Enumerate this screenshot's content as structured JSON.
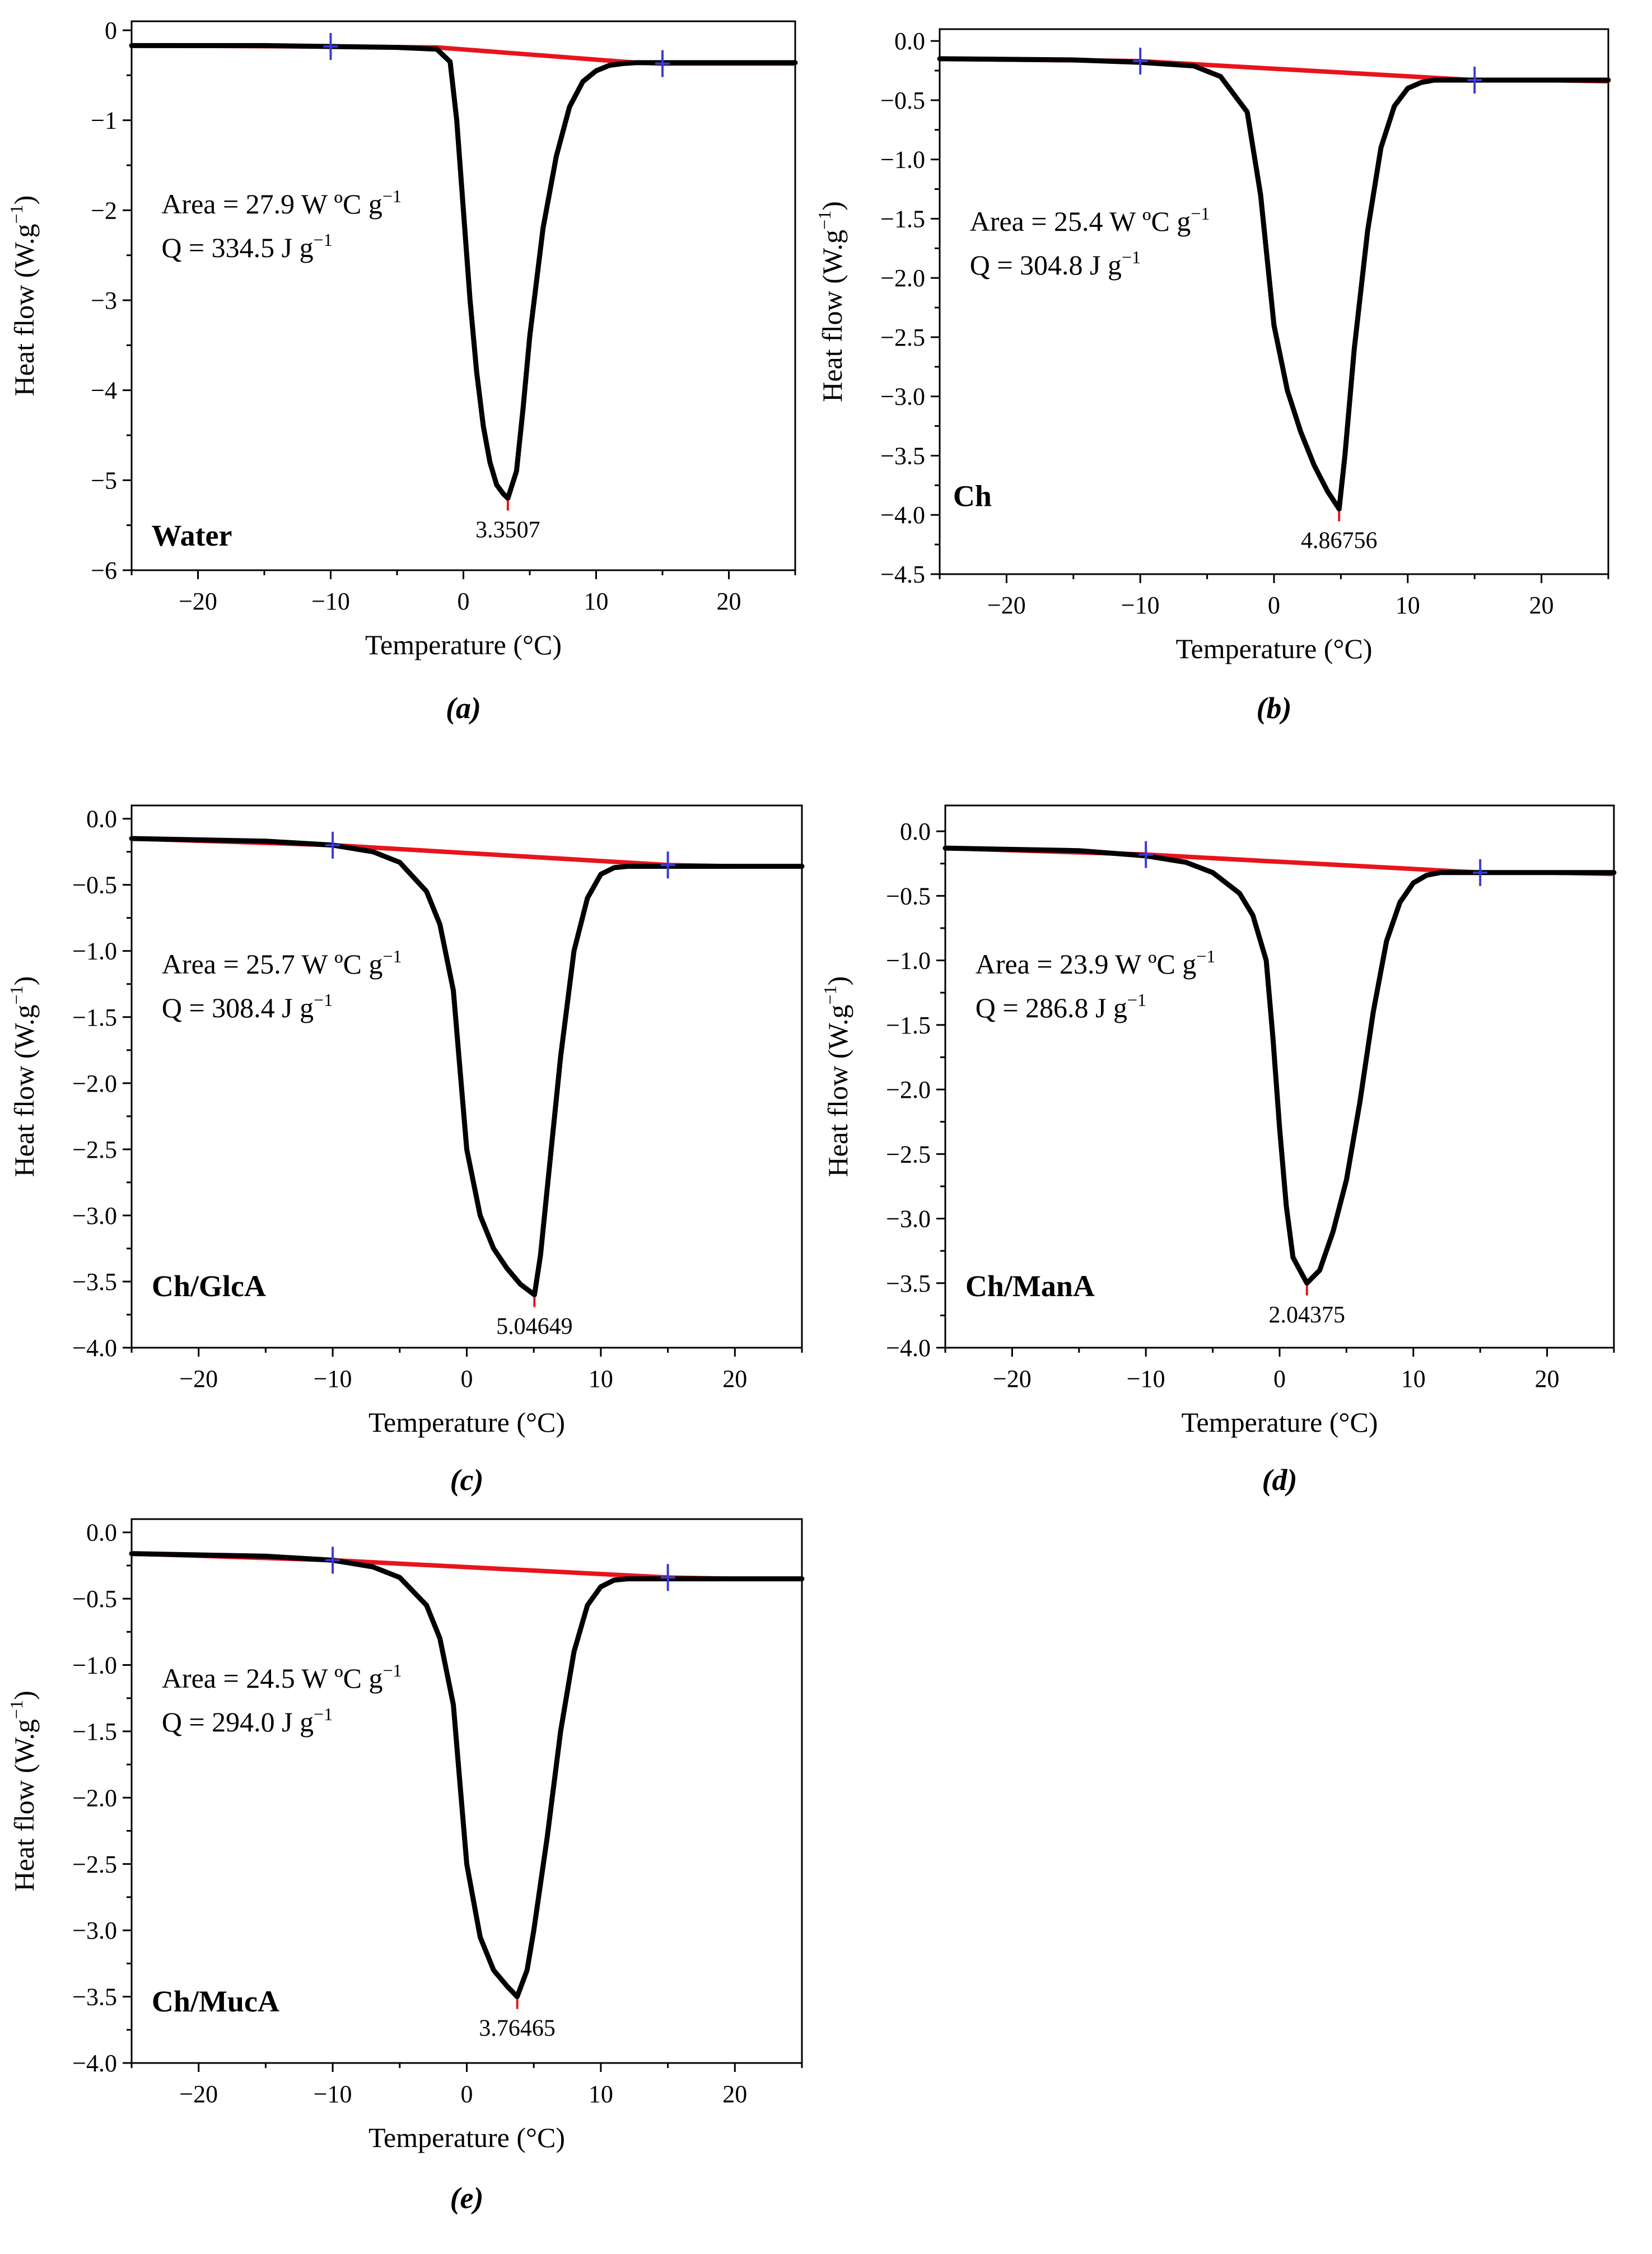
{
  "figure": {
    "x_axis_label": "Temperature (°C)",
    "y_axis_label": "Heat flow (W.g",
    "y_axis_label_sup": "−1",
    "y_axis_label_close": ")",
    "area_unit": "W ºC g",
    "q_unit": "J g",
    "unit_sup": "−1",
    "colors": {
      "curve": "#000000",
      "baseline": "#e8141c",
      "integration_marker": "#3a3ad8",
      "peak_marker": "#e8141c",
      "frame": "#000000"
    }
  },
  "chart_data": [
    {
      "type": "line",
      "panel": "(a)",
      "sample_label": "Water",
      "xlabel": "Temperature (°C)",
      "ylabel": "Heat flow (W.g−1)",
      "xlim": [
        -25,
        25
      ],
      "ylim": [
        -6,
        0.1
      ],
      "xticks": [
        -20,
        -10,
        0,
        10,
        20
      ],
      "yticks": [
        0,
        -1,
        -2,
        -3,
        -4,
        -5,
        -6
      ],
      "ytick_labels": [
        "0",
        "−1",
        "−2",
        "−3",
        "−4",
        "−5",
        "−6"
      ],
      "area_text": "Area = 27.9",
      "q_text": "Q = 334.5",
      "peak_label": "3.3507",
      "peak": [
        3.3507,
        -5.2
      ],
      "integration_limits": [
        -10,
        15
      ],
      "series": [
        {
          "name": "heat flow",
          "x": [
            -25,
            -20,
            -15,
            -10,
            -5,
            -2,
            -1,
            -0.5,
            0,
            0.5,
            1,
            1.5,
            2,
            2.5,
            3,
            3.35,
            4,
            4.5,
            5,
            6,
            7,
            8,
            9,
            10,
            11,
            12,
            13,
            15,
            20,
            25
          ],
          "y": [
            -0.17,
            -0.17,
            -0.17,
            -0.18,
            -0.19,
            -0.21,
            -0.35,
            -1.0,
            -2.0,
            -3.0,
            -3.8,
            -4.4,
            -4.8,
            -5.05,
            -5.15,
            -5.2,
            -4.9,
            -4.2,
            -3.4,
            -2.2,
            -1.4,
            -0.85,
            -0.57,
            -0.45,
            -0.39,
            -0.37,
            -0.36,
            -0.36,
            -0.36,
            -0.36
          ]
        },
        {
          "name": "baseline",
          "x": [
            -25,
            -10,
            -2,
            13,
            15,
            20,
            25
          ],
          "y": [
            -0.17,
            -0.18,
            -0.19,
            -0.36,
            -0.37,
            -0.37,
            -0.37
          ]
        }
      ]
    },
    {
      "type": "line",
      "panel": "(b)",
      "sample_label": "Ch",
      "xlabel": "Temperature (°C)",
      "ylabel": "Heat flow (W.g−1)",
      "xlim": [
        -25,
        25
      ],
      "ylim": [
        -4.5,
        0.1
      ],
      "xticks": [
        -20,
        -10,
        0,
        10,
        20
      ],
      "yticks": [
        0.0,
        -0.5,
        -1.0,
        -1.5,
        -2.0,
        -2.5,
        -3.0,
        -3.5,
        -4.0,
        -4.5
      ],
      "ytick_labels": [
        "0.0",
        "−0.5",
        "−1.0",
        "−1.5",
        "−2.0",
        "−2.5",
        "−3.0",
        "−3.5",
        "−4.0",
        "−4.5"
      ],
      "area_text": "Area = 25.4",
      "q_text": "Q = 304.8",
      "peak_label": "4.86756",
      "peak": [
        4.86756,
        -3.95
      ],
      "integration_limits": [
        -10,
        15
      ],
      "series": [
        {
          "name": "heat flow",
          "x": [
            -25,
            -15,
            -10,
            -6,
            -4,
            -2,
            -1,
            0,
            1,
            2,
            3,
            4,
            4.87,
            5.3,
            6,
            7,
            8,
            9,
            10,
            11,
            12,
            13,
            15,
            20,
            25
          ],
          "y": [
            -0.15,
            -0.16,
            -0.18,
            -0.21,
            -0.3,
            -0.6,
            -1.3,
            -2.4,
            -2.95,
            -3.3,
            -3.58,
            -3.8,
            -3.95,
            -3.5,
            -2.6,
            -1.6,
            -0.9,
            -0.55,
            -0.4,
            -0.35,
            -0.33,
            -0.33,
            -0.33,
            -0.33,
            -0.33
          ]
        },
        {
          "name": "baseline",
          "x": [
            -25,
            -10,
            15,
            20,
            25
          ],
          "y": [
            -0.15,
            -0.17,
            -0.33,
            -0.33,
            -0.34
          ]
        }
      ]
    },
    {
      "type": "line",
      "panel": "(c)",
      "sample_label": "Ch/GlcA",
      "xlabel": "Temperature (°C)",
      "ylabel": "Heat flow (W.g−1)",
      "xlim": [
        -25,
        25
      ],
      "ylim": [
        -4.0,
        0.1
      ],
      "xticks": [
        -20,
        -10,
        0,
        10,
        20
      ],
      "yticks": [
        0.0,
        -0.5,
        -1.0,
        -1.5,
        -2.0,
        -2.5,
        -3.0,
        -3.5,
        -4.0
      ],
      "ytick_labels": [
        "0.0",
        "−0.5",
        "−1.0",
        "−1.5",
        "−2.0",
        "−2.5",
        "−3.0",
        "−3.5",
        "−4.0"
      ],
      "area_text": "Area = 25.7",
      "q_text": "Q = 308.4",
      "peak_label": "5.04649",
      "peak": [
        5.04649,
        -3.6
      ],
      "integration_limits": [
        -10,
        15
      ],
      "series": [
        {
          "name": "heat flow",
          "x": [
            -25,
            -15,
            -10,
            -7,
            -5,
            -3,
            -2,
            -1,
            -0.5,
            0,
            1,
            2,
            3,
            4,
            5.05,
            5.5,
            6,
            7,
            8,
            9,
            10,
            11,
            12,
            15,
            20,
            25
          ],
          "y": [
            -0.15,
            -0.17,
            -0.2,
            -0.25,
            -0.33,
            -0.55,
            -0.8,
            -1.3,
            -1.9,
            -2.5,
            -3.0,
            -3.25,
            -3.4,
            -3.52,
            -3.6,
            -3.3,
            -2.8,
            -1.8,
            -1.0,
            -0.6,
            -0.42,
            -0.37,
            -0.36,
            -0.36,
            -0.36,
            -0.36
          ]
        },
        {
          "name": "baseline",
          "x": [
            -25,
            -10,
            15,
            20,
            25
          ],
          "y": [
            -0.15,
            -0.2,
            -0.35,
            -0.36,
            -0.36
          ]
        }
      ]
    },
    {
      "type": "line",
      "panel": "(d)",
      "sample_label": "Ch/ManA",
      "xlabel": "Temperature (°C)",
      "ylabel": "Heat flow (W.g−1)",
      "xlim": [
        -25,
        25
      ],
      "ylim": [
        -4.0,
        0.2
      ],
      "xticks": [
        -20,
        -10,
        0,
        10,
        20
      ],
      "yticks": [
        0.0,
        -0.5,
        -1.0,
        -1.5,
        -2.0,
        -2.5,
        -3.0,
        -3.5,
        -4.0
      ],
      "ytick_labels": [
        "0.0",
        "−0.5",
        "−1.0",
        "−1.5",
        "−2.0",
        "−2.5",
        "−3.0",
        "−3.5",
        "−4.0"
      ],
      "area_text": "Area = 23.9",
      "q_text": "Q = 286.8",
      "peak_label": "2.04375",
      "peak": [
        2.04375,
        -3.5
      ],
      "integration_limits": [
        -10,
        15
      ],
      "series": [
        {
          "name": "heat flow",
          "x": [
            -25,
            -15,
            -10,
            -7,
            -5,
            -3,
            -2,
            -1,
            -0.5,
            0,
            0.5,
            1,
            2.04,
            3,
            4,
            5,
            6,
            7,
            8,
            9,
            10,
            11,
            12,
            15,
            20,
            25
          ],
          "y": [
            -0.13,
            -0.15,
            -0.19,
            -0.24,
            -0.32,
            -0.48,
            -0.65,
            -1.0,
            -1.6,
            -2.3,
            -2.9,
            -3.3,
            -3.5,
            -3.4,
            -3.1,
            -2.7,
            -2.1,
            -1.4,
            -0.85,
            -0.55,
            -0.4,
            -0.34,
            -0.32,
            -0.32,
            -0.32,
            -0.32
          ]
        },
        {
          "name": "baseline",
          "x": [
            -25,
            -10,
            15,
            20,
            25
          ],
          "y": [
            -0.13,
            -0.18,
            -0.32,
            -0.32,
            -0.33
          ]
        }
      ]
    },
    {
      "type": "line",
      "panel": "(e)",
      "sample_label": "Ch/MucA",
      "xlabel": "Temperature (°C)",
      "ylabel": "Heat flow (W.g−1)",
      "xlim": [
        -25,
        25
      ],
      "ylim": [
        -4.0,
        0.1
      ],
      "xticks": [
        -20,
        -10,
        0,
        10,
        20
      ],
      "yticks": [
        0.0,
        -0.5,
        -1.0,
        -1.5,
        -2.0,
        -2.5,
        -3.0,
        -3.5,
        -4.0
      ],
      "ytick_labels": [
        "0.0",
        "−0.5",
        "−1.0",
        "−1.5",
        "−2.0",
        "−2.5",
        "−3.0",
        "−3.5",
        "−4.0"
      ],
      "area_text": "Area = 24.5",
      "q_text": "Q = 294.0",
      "peak_label": "3.76465",
      "peak": [
        3.76465,
        -3.5
      ],
      "integration_limits": [
        -10,
        15
      ],
      "series": [
        {
          "name": "heat flow",
          "x": [
            -25,
            -15,
            -10,
            -7,
            -5,
            -3,
            -2,
            -1,
            -0.5,
            0,
            1,
            2,
            3,
            3.76,
            4.5,
            5,
            6,
            7,
            8,
            9,
            10,
            11,
            12,
            15,
            20,
            25
          ],
          "y": [
            -0.16,
            -0.18,
            -0.21,
            -0.26,
            -0.34,
            -0.55,
            -0.8,
            -1.3,
            -1.9,
            -2.5,
            -3.05,
            -3.3,
            -3.42,
            -3.5,
            -3.3,
            -3.0,
            -2.3,
            -1.5,
            -0.9,
            -0.55,
            -0.41,
            -0.36,
            -0.35,
            -0.35,
            -0.35,
            -0.35
          ]
        },
        {
          "name": "baseline",
          "x": [
            -25,
            -10,
            15,
            20,
            25
          ],
          "y": [
            -0.16,
            -0.21,
            -0.34,
            -0.35,
            -0.35
          ]
        }
      ]
    }
  ]
}
